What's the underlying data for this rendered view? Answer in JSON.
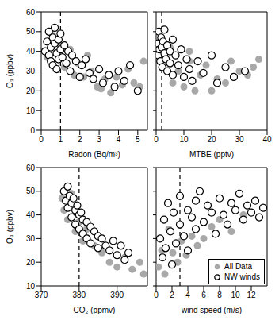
{
  "chart_data": [
    {
      "type": "scatter",
      "xlabel": "Radon (Bq/m³)",
      "ylabel": "O₃ (ppbv)",
      "xlim": [
        0,
        5.5
      ],
      "xticks": [
        0,
        1,
        2,
        3,
        4,
        5
      ],
      "ylim": [
        0,
        60
      ],
      "yticks": [
        0,
        10,
        20,
        30,
        40,
        50,
        60
      ],
      "threshold": 1,
      "series": [
        {
          "color": "#a8a8a8",
          "marker": "filled_circle",
          "x": [
            0.3,
            0.6,
            0.9,
            1.2,
            1.5,
            1.9,
            2.2,
            2.6,
            2.9,
            3.3,
            3.6,
            3.9,
            4.2,
            4.5,
            4.8,
            5.1,
            5.3,
            1.7,
            2.4,
            3.1
          ],
          "y": [
            37,
            48,
            44,
            32,
            41,
            34,
            27,
            30,
            22,
            26,
            19,
            27,
            23,
            31,
            24,
            22,
            35,
            28,
            38,
            21
          ]
        },
        {
          "color": "#000000",
          "marker": "open_circle",
          "x": [
            0.2,
            0.3,
            0.4,
            0.4,
            0.5,
            0.5,
            0.6,
            0.6,
            0.7,
            0.7,
            0.8,
            0.8,
            0.9,
            0.9,
            1.0,
            1.0,
            1.1,
            1.2,
            1.3,
            1.4,
            1.5,
            1.6,
            1.8,
            2.0,
            2.1,
            2.3,
            2.5,
            2.7,
            3.0,
            3.2,
            3.5,
            3.8,
            4.0,
            4.3,
            4.6,
            5.0
          ],
          "y": [
            40,
            45,
            38,
            50,
            42,
            35,
            47,
            33,
            44,
            52,
            39,
            31,
            46,
            36,
            41,
            49,
            37,
            43,
            34,
            40,
            30,
            38,
            35,
            27,
            33,
            36,
            29,
            26,
            31,
            24,
            28,
            22,
            30,
            25,
            33,
            20
          ]
        }
      ]
    },
    {
      "type": "scatter",
      "xlabel": "MTBE (pptv)",
      "xlim": [
        0,
        40
      ],
      "xticks": [
        0,
        10,
        20,
        30,
        40
      ],
      "ylim": [
        0,
        60
      ],
      "yticks": [
        0,
        10,
        20,
        30,
        40,
        50,
        60
      ],
      "tick_labels": "x",
      "threshold": 2,
      "series": [
        {
          "color": "#a8a8a8",
          "marker": "filled_circle",
          "x": [
            2,
            5,
            8,
            10,
            12,
            14,
            16,
            18,
            20,
            22,
            25,
            27,
            30,
            33,
            35,
            37,
            12,
            6
          ],
          "y": [
            37,
            42,
            30,
            22,
            35,
            20,
            28,
            33,
            20,
            26,
            24,
            35,
            30,
            28,
            32,
            36,
            40,
            24
          ]
        },
        {
          "color": "#000000",
          "marker": "open_circle",
          "x": [
            0.5,
            0.8,
            1,
            1.2,
            1.5,
            1.8,
            2,
            2.2,
            2.5,
            3,
            3,
            3.5,
            4,
            4,
            5,
            5,
            6,
            6,
            7,
            8,
            9,
            10,
            11,
            12,
            13,
            15,
            17,
            20,
            22,
            25,
            28,
            32
          ],
          "y": [
            44,
            38,
            50,
            41,
            35,
            47,
            42,
            32,
            45,
            39,
            51,
            36,
            43,
            30,
            40,
            34,
            46,
            28,
            38,
            33,
            41,
            27,
            36,
            31,
            25,
            35,
            29,
            38,
            24,
            32,
            27,
            30
          ]
        }
      ]
    },
    {
      "type": "scatter",
      "xlabel": "CO₂ (ppmv)",
      "ylabel": "O₃ (ppbv)",
      "xlim": [
        370,
        398
      ],
      "xticks": [
        370,
        380,
        390
      ],
      "ylim": [
        10,
        60
      ],
      "yticks": [
        10,
        20,
        30,
        40,
        50,
        60
      ],
      "threshold": 380,
      "series": [
        {
          "color": "#a8a8a8",
          "marker": "filled_circle",
          "x": [
            375.5,
            376,
            377,
            378,
            379,
            380,
            381,
            382,
            384,
            386,
            388,
            390,
            392,
            394,
            396,
            397
          ],
          "y": [
            47,
            42,
            38,
            49,
            33,
            37,
            29,
            34,
            27,
            24,
            20,
            18,
            22,
            17,
            20,
            15
          ]
        },
        {
          "color": "#000000",
          "marker": "open_circle",
          "x": [
            376,
            376.5,
            377,
            377,
            377.5,
            378,
            378,
            378.5,
            379,
            379,
            379.5,
            380,
            380,
            380.5,
            381,
            381,
            382,
            382,
            383,
            383,
            384,
            385,
            385,
            386,
            387,
            388,
            389,
            390,
            391,
            392,
            393
          ],
          "y": [
            50,
            46,
            52,
            43,
            48,
            45,
            39,
            47,
            42,
            36,
            44,
            40,
            34,
            41,
            38,
            32,
            37,
            30,
            35,
            28,
            33,
            31,
            26,
            30,
            27,
            25,
            29,
            23,
            27,
            21,
            24
          ]
        }
      ]
    },
    {
      "type": "scatter",
      "xlabel": "wind speed (m/s)",
      "xlim": [
        0,
        14
      ],
      "xticks": [
        0,
        2,
        4,
        6,
        8,
        10,
        12
      ],
      "ylim": [
        10,
        60
      ],
      "yticks": [
        10,
        20,
        30,
        40,
        50,
        60
      ],
      "tick_labels": "x",
      "threshold": 3,
      "legend": "lower right",
      "series": [
        {
          "name": "All Data",
          "color": "#a8a8a8",
          "marker": "filled_circle",
          "x": [
            0.3,
            0.7,
            1.1,
            1.6,
            2.1,
            2.7,
            3.2,
            3.8,
            4.5,
            5.2,
            6,
            7,
            8,
            9.5,
            11
          ],
          "y": [
            18,
            25,
            15,
            34,
            24,
            20,
            29,
            23,
            31,
            27,
            30,
            35,
            38,
            33,
            40
          ]
        },
        {
          "name": "NW winds",
          "color": "#000000",
          "marker": "open_circle",
          "x": [
            0.5,
            0.8,
            1,
            1.2,
            1.5,
            1.8,
            2,
            2.2,
            2.5,
            3,
            3,
            3.5,
            4,
            4,
            4.5,
            5,
            5,
            5.5,
            6,
            6.5,
            7,
            7.5,
            8,
            8.5,
            9,
            9.5,
            10,
            10.5,
            11,
            11.5,
            12,
            12.5,
            13,
            13.5
          ],
          "y": [
            30,
            22,
            38,
            26,
            45,
            33,
            19,
            41,
            28,
            36,
            48,
            31,
            42,
            25,
            39,
            46,
            34,
            50,
            37,
            44,
            41,
            32,
            47,
            40,
            36,
            45,
            42,
            49,
            38,
            44,
            41,
            46,
            39,
            43
          ]
        }
      ]
    }
  ]
}
